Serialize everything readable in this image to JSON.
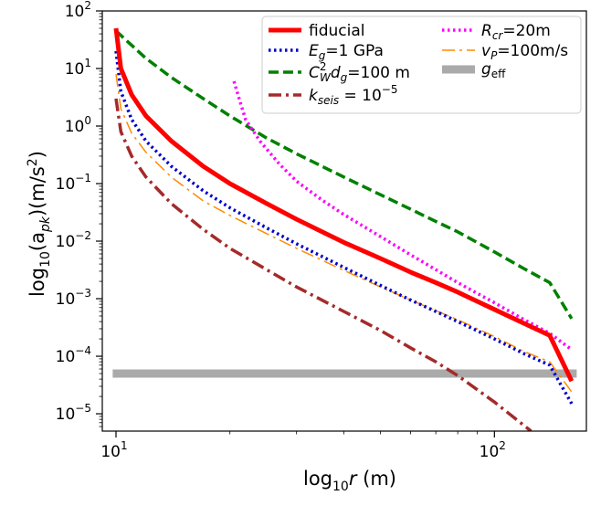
{
  "chart_data": {
    "type": "line",
    "xscale": "log",
    "yscale": "log",
    "xlim": [
      9.2,
      175
    ],
    "ylim": [
      5e-06,
      100
    ],
    "xlabel": {
      "prefix": "log",
      "sub": "10",
      "var": "r",
      "suffix": " (m)"
    },
    "ylabel": {
      "prefix": "log",
      "sub": "10",
      "open": "(a",
      "varsub": "pk",
      "close": ")(m/s",
      "sup": "2",
      "end": ")"
    },
    "x_ticks": [
      {
        "value": 10,
        "base": "10",
        "exp": "1"
      },
      {
        "value": 100,
        "base": "10",
        "exp": "2"
      }
    ],
    "y_ticks": [
      {
        "value": 1e-05,
        "base": "10",
        "exp": "−5"
      },
      {
        "value": 0.0001,
        "base": "10",
        "exp": "−4"
      },
      {
        "value": 0.001,
        "base": "10",
        "exp": "−3"
      },
      {
        "value": 0.01,
        "base": "10",
        "exp": "−2"
      },
      {
        "value": 0.1,
        "base": "10",
        "exp": "−1"
      },
      {
        "value": 1,
        "base": "10",
        "exp": "0"
      },
      {
        "value": 10,
        "base": "10",
        "exp": "1"
      },
      {
        "value": 100,
        "base": "10",
        "exp": "2"
      }
    ],
    "series": [
      {
        "key": "fiducial",
        "name": "fiducial",
        "color": "#ff0000",
        "dash": "solid",
        "width": 5,
        "x": [
          10,
          10.3,
          11,
          12,
          14,
          17,
          20,
          25,
          30,
          40,
          50,
          60,
          70,
          80,
          100,
          120,
          140,
          160
        ],
        "y": [
          50,
          10,
          3.5,
          1.5,
          0.55,
          0.2,
          0.1,
          0.045,
          0.024,
          0.0095,
          0.005,
          0.0029,
          0.0019,
          0.0013,
          0.00065,
          0.00037,
          0.00023,
          3.7e-05
        ]
      },
      {
        "key": "eg",
        "name": "E_g=1 GPa",
        "color": "#0000cc",
        "dash": "dotted",
        "width": 3.5,
        "x": [
          10,
          10.3,
          11,
          12,
          14,
          17,
          20,
          25,
          30,
          40,
          50,
          60,
          70,
          80,
          100,
          120,
          140,
          160
        ],
        "y": [
          20,
          4,
          1.3,
          0.55,
          0.2,
          0.075,
          0.038,
          0.017,
          0.009,
          0.0035,
          0.0017,
          0.00095,
          0.0006,
          0.0004,
          0.0002,
          0.00011,
          7e-05,
          1.5e-05
        ]
      },
      {
        "key": "cw",
        "name": "C_W^2 d_g=100 m",
        "color": "#008000",
        "dash": "dashed",
        "width": 3.5,
        "x": [
          10,
          12,
          14,
          17,
          20,
          25,
          30,
          40,
          50,
          60,
          70,
          80,
          100,
          120,
          140,
          160
        ],
        "y": [
          45,
          15,
          7,
          3,
          1.5,
          0.62,
          0.33,
          0.13,
          0.064,
          0.036,
          0.022,
          0.0145,
          0.0065,
          0.0033,
          0.0019,
          0.00045
        ]
      },
      {
        "key": "kseis",
        "name": "k_seis=10^-5",
        "color": "#a52a2a",
        "dash": "dashdot",
        "width": 3.5,
        "x": [
          10,
          10.3,
          11,
          12,
          14,
          17,
          20,
          25,
          30,
          40,
          50,
          60,
          70,
          80,
          100,
          125
        ],
        "y": [
          3,
          0.8,
          0.3,
          0.13,
          0.045,
          0.016,
          0.0075,
          0.0032,
          0.0016,
          0.0006,
          0.00028,
          0.00014,
          8e-05,
          4.6e-05,
          1.6e-05,
          5e-06
        ]
      },
      {
        "key": "rcr",
        "name": "R_cr=20m",
        "color": "#ff00ff",
        "dash": "dotted",
        "width": 3.5,
        "x": [
          20.5,
          21,
          22,
          24,
          27,
          30,
          35,
          40,
          50,
          60,
          70,
          80,
          100,
          120,
          140,
          160
        ],
        "y": [
          6,
          3.5,
          1.3,
          0.55,
          0.22,
          0.11,
          0.052,
          0.029,
          0.012,
          0.0058,
          0.0032,
          0.0019,
          0.00085,
          0.00043,
          0.00025,
          0.00013
        ]
      },
      {
        "key": "vp",
        "name": "v_P=100m/s",
        "color": "#ff8c00",
        "dash": "dashdot",
        "width": 1.5,
        "x": [
          10,
          10.3,
          11,
          12,
          14,
          17,
          20,
          25,
          30,
          40,
          50,
          60,
          70,
          80,
          100,
          120,
          140,
          160
        ],
        "y": [
          8,
          2,
          0.75,
          0.35,
          0.13,
          0.05,
          0.028,
          0.0135,
          0.0075,
          0.0031,
          0.0016,
          0.00095,
          0.00062,
          0.00043,
          0.00022,
          0.00012,
          8e-05,
          2.4e-05
        ]
      },
      {
        "key": "geff",
        "name": "g_eff",
        "color": "#aaaaaa",
        "dash": "solid",
        "width": 9,
        "x": [
          9.8,
          165
        ],
        "y": [
          5e-05,
          5e-05
        ]
      }
    ],
    "legend": {
      "placement": "top-right",
      "entries": [
        {
          "key": "fiducial",
          "text": "fiducial"
        },
        {
          "key": "eg",
          "var": "E",
          "vsub": "g",
          "text": "=1 GPa"
        },
        {
          "key": "cw",
          "var": "C",
          "vsup": "2",
          "vsub": "W",
          "var2": "d",
          "v2sub": "g",
          "text": "=100 m"
        },
        {
          "key": "kseis",
          "var": "k",
          "vsub": "seis",
          "text": " = 10",
          "tsup": "−5"
        },
        {
          "key": "rcr",
          "var": "R",
          "vsub": "cr",
          "text": "=20m"
        },
        {
          "key": "vp",
          "var": "v",
          "vsub": "P",
          "text": "=100m/s"
        },
        {
          "key": "geff",
          "var": "g",
          "vsub": "eff",
          "text": ""
        }
      ]
    }
  }
}
